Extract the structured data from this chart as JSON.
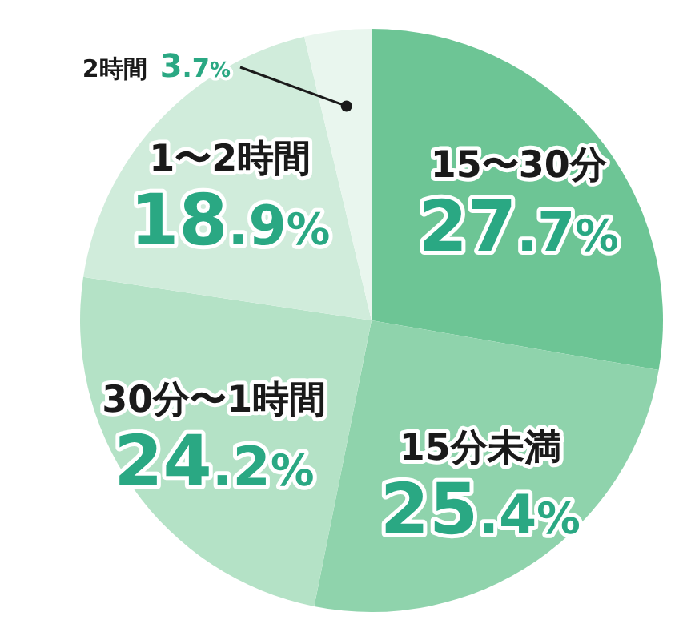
{
  "chart_data": {
    "type": "pie",
    "categories": [
      "15〜30分",
      "15分未満",
      "30分〜1時間",
      "1〜2時間",
      "2時間"
    ],
    "values": [
      27.7,
      25.4,
      24.2,
      18.9,
      3.7
    ],
    "colors": [
      "#6dc595",
      "#8fd3ac",
      "#b4e2c6",
      "#d0ecdb",
      "#e9f6ee"
    ],
    "value_labels": [
      "27.7%",
      "25.4%",
      "24.2%",
      "18.9%",
      "3.7%"
    ]
  }
}
